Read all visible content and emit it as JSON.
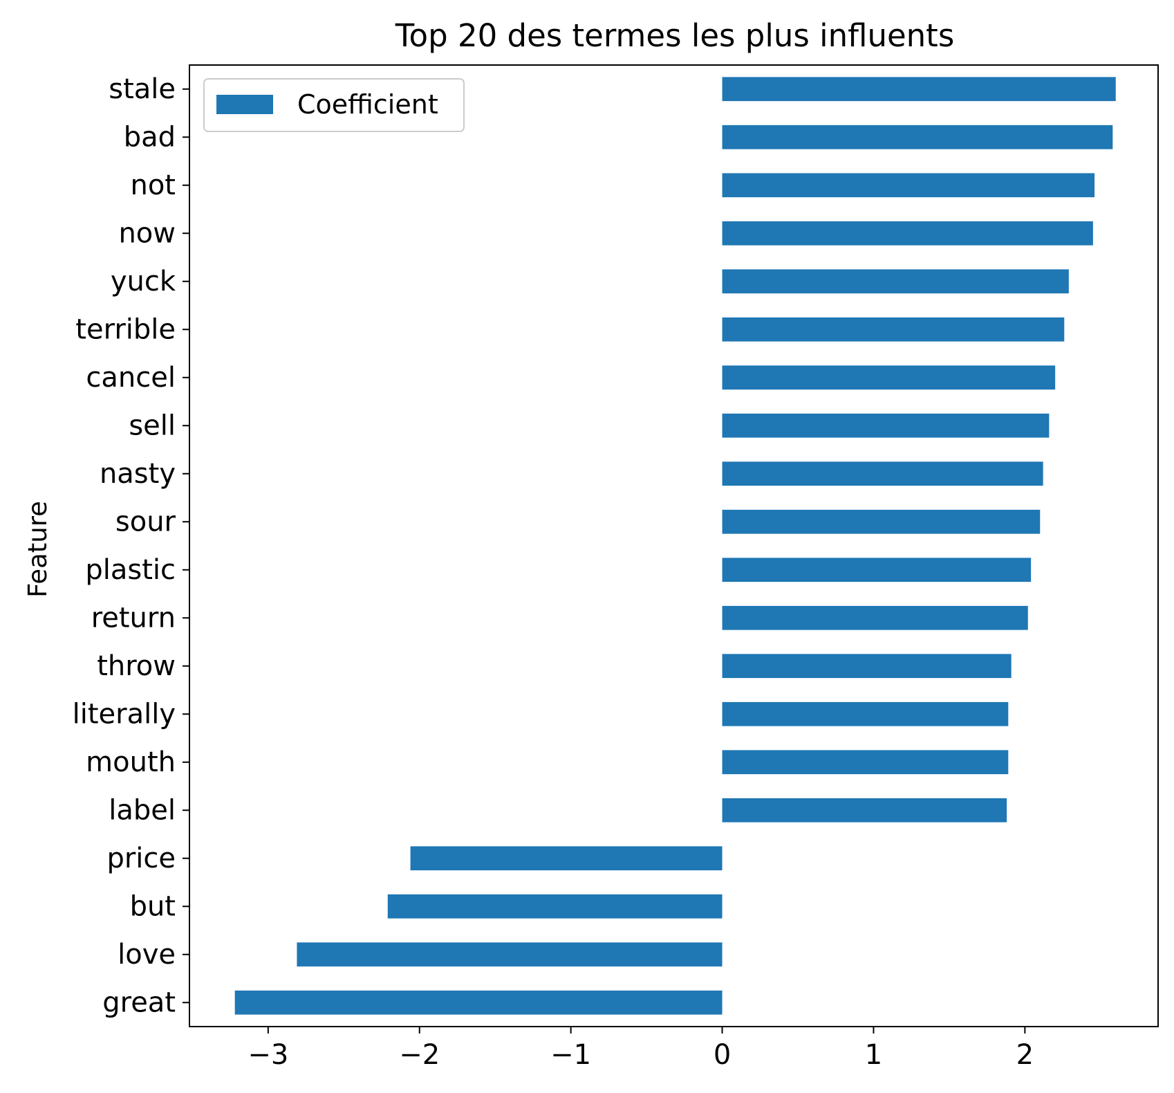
{
  "chart_data": {
    "type": "bar",
    "orientation": "horizontal",
    "title": "Top 20 des termes les plus influents",
    "xlabel": "",
    "ylabel": "Feature",
    "categories": [
      "stale",
      "bad",
      "not",
      "now",
      "yuck",
      "terrible",
      "cancel",
      "sell",
      "nasty",
      "sour",
      "plastic",
      "return",
      "throw",
      "literally",
      "mouth",
      "label",
      "price",
      "but",
      "love",
      "great"
    ],
    "series": [
      {
        "name": "Coefficient",
        "color": "#1f77b4",
        "values": [
          2.6,
          2.58,
          2.46,
          2.45,
          2.29,
          2.26,
          2.2,
          2.16,
          2.12,
          2.1,
          2.04,
          2.02,
          1.91,
          1.89,
          1.89,
          1.88,
          -2.06,
          -2.21,
          -2.81,
          -3.22
        ]
      }
    ],
    "xlim": [
      -3.52,
      2.88
    ],
    "xticks": [
      -3,
      -2,
      -1,
      0,
      1,
      2
    ],
    "xtick_labels": [
      "−3",
      "−2",
      "−1",
      "0",
      "1",
      "2"
    ],
    "grid": false,
    "legend_position": "upper left"
  }
}
